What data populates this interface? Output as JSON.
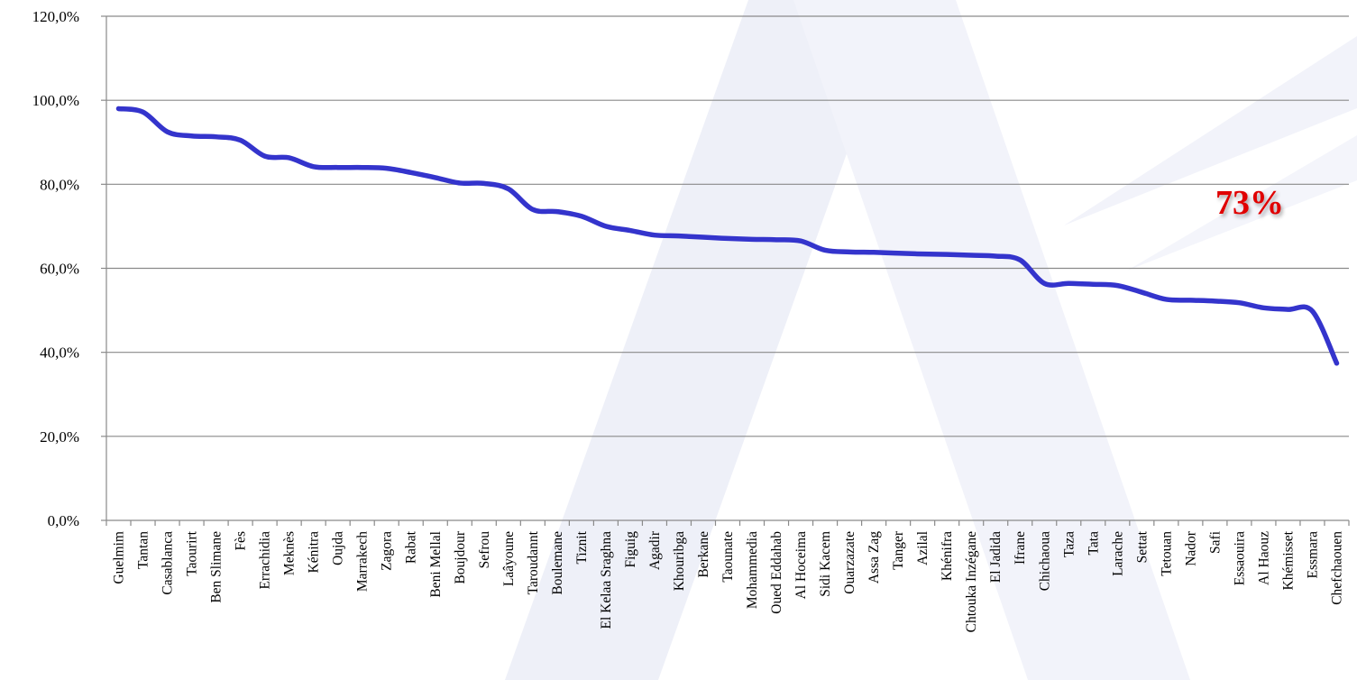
{
  "chart_data": {
    "type": "line",
    "title": "",
    "xlabel": "",
    "ylabel": "",
    "ylim": [
      0,
      120
    ],
    "y_ticks": [
      "0,0%",
      "20,0%",
      "40,0%",
      "60,0%",
      "80,0%",
      "100,0%",
      "120,0%"
    ],
    "grid": true,
    "legend": "none",
    "categories": [
      "Guelmim",
      "Tantan",
      "Casablanca",
      "Taourirt",
      "Ben Slimane",
      "Fès",
      "Errachidia",
      "Meknès",
      "Kénitra",
      "Oujda",
      "Marrakech",
      "Zagora",
      "Rabat",
      "Beni Mellal",
      "Boujdour",
      "Sefrou",
      "Laâyoune",
      "Taroudannt",
      "Boulemane",
      "Tiznit",
      "El Kelaa Sraghna",
      "Figuig",
      "Agadir",
      "Khouribga",
      "Berkane",
      "Taounate",
      "Mohammedia",
      "Oued Eddahab",
      "Al Hoceima",
      "Sidi Kacem",
      "Ouarzazate",
      "Assa Zag",
      "Tanger",
      "Azilal",
      "Khénifra",
      "Chtouka Inzégane",
      "El Jadida",
      "Ifrane",
      "Chichaoua",
      "Taza",
      "Tata",
      "Larache",
      "Settat",
      "Tetouan",
      "Nador",
      "Safi",
      "Essaouira",
      "Al Haouz",
      "Khémisset",
      "Essmara",
      "Chefchaouen"
    ],
    "series": [
      {
        "values": [
          98.0,
          97.2,
          92.5,
          91.5,
          91.3,
          90.5,
          86.7,
          86.3,
          84.2,
          84.0,
          84.0,
          83.8,
          82.8,
          81.6,
          80.3,
          80.2,
          78.9,
          74.0,
          73.5,
          72.4,
          70.0,
          69.0,
          67.9,
          67.7,
          67.4,
          67.1,
          66.9,
          66.8,
          66.5,
          64.3,
          63.9,
          63.8,
          63.6,
          63.4,
          63.3,
          63.1,
          62.9,
          62.0,
          56.4,
          56.4,
          56.2,
          55.9,
          54.3,
          52.6,
          52.4,
          52.2,
          51.8,
          50.6,
          50.2,
          49.8,
          37.4
        ],
        "color": "#3434cc"
      }
    ],
    "reference_line": {
      "value": 72.6,
      "label": "73%",
      "color": "#000000",
      "label_color": "#e00000"
    }
  }
}
